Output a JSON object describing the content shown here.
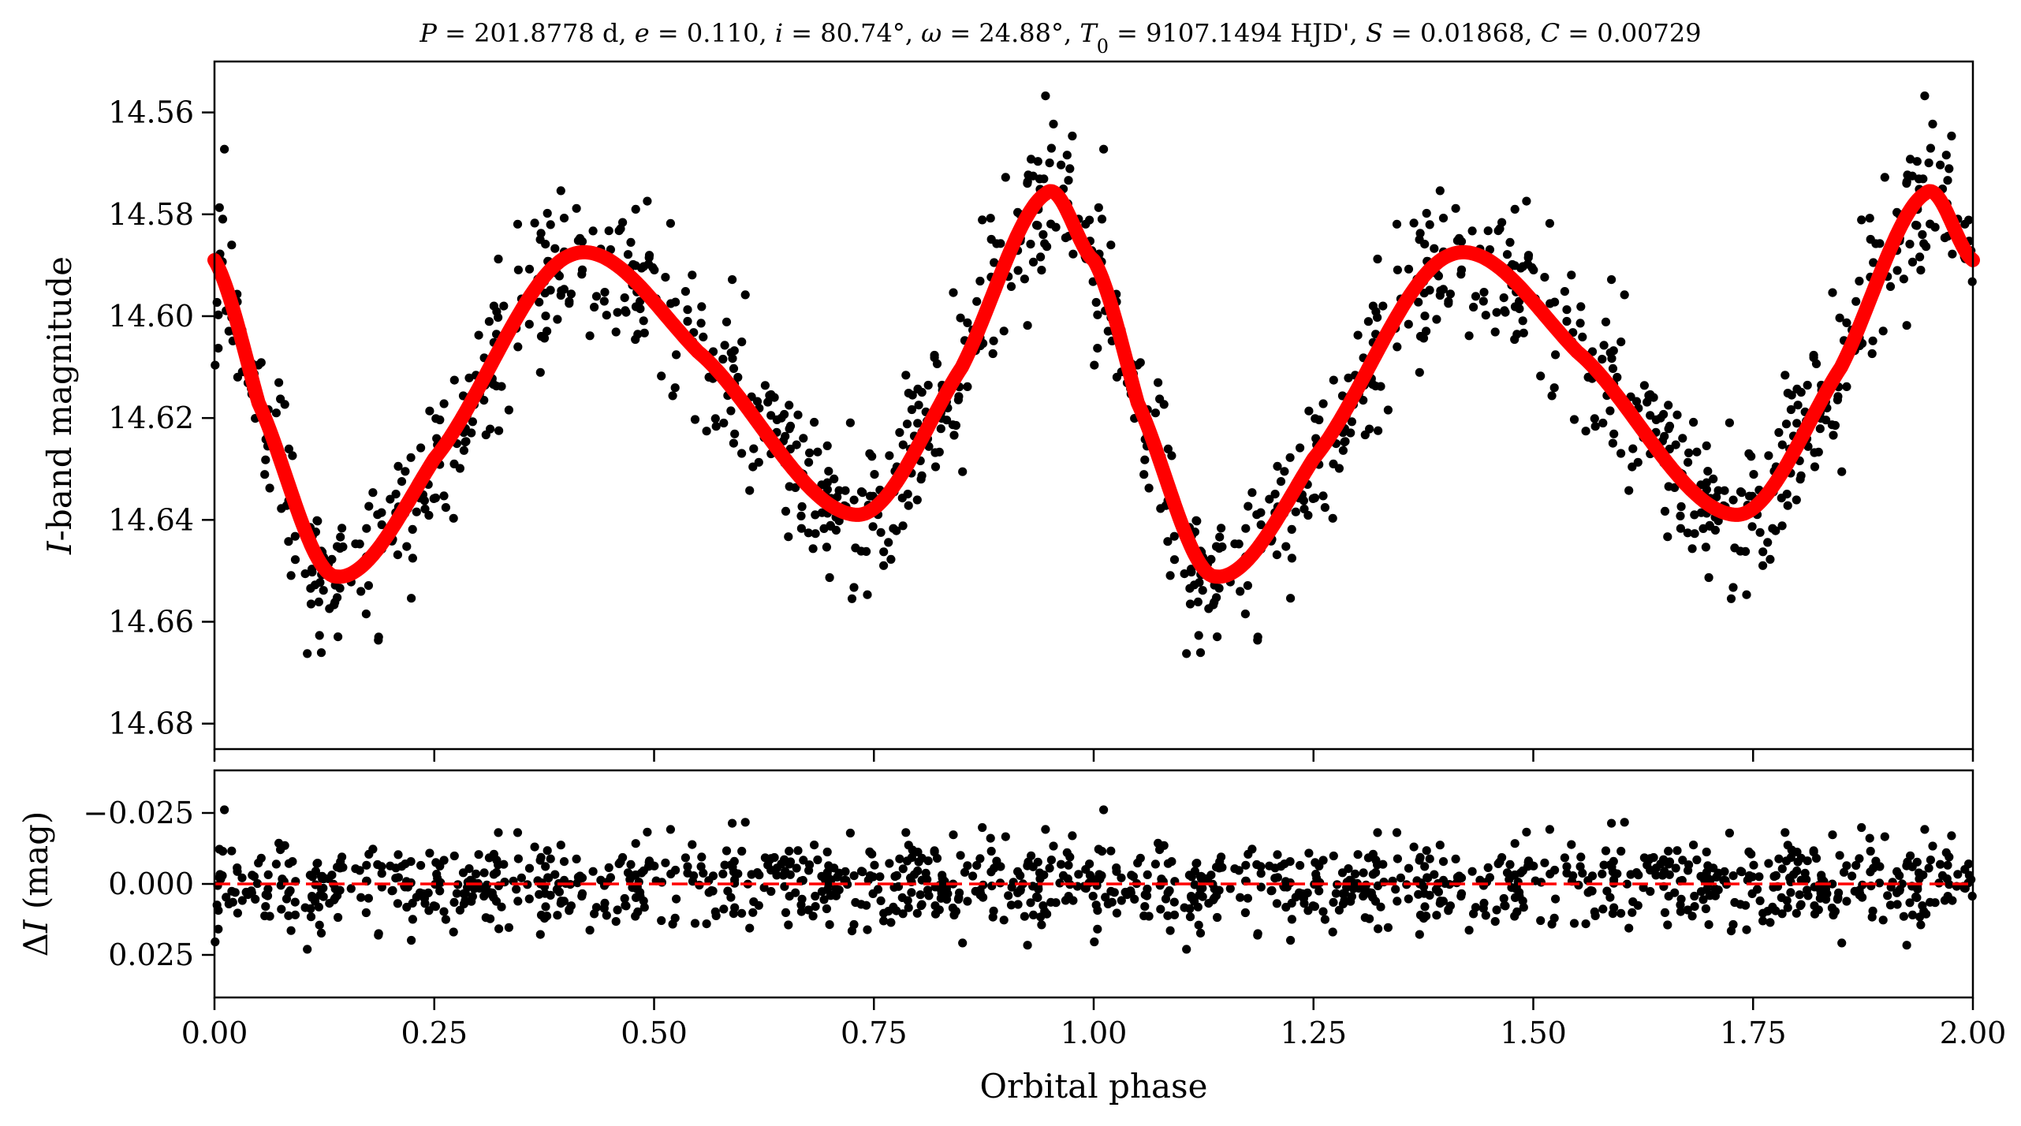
{
  "chart_data": [
    {
      "type": "scatter",
      "title_parts": [
        {
          "text": "P",
          "italic": true
        },
        {
          "text": " = 201.8778 d, ",
          "italic": false
        },
        {
          "text": "e",
          "italic": true
        },
        {
          "text": " = 0.110, ",
          "italic": false
        },
        {
          "text": "i",
          "italic": true
        },
        {
          "text": " = 80.74°, ",
          "italic": false
        },
        {
          "text": "ω",
          "italic": true
        },
        {
          "text": " = 24.88°, ",
          "italic": false
        },
        {
          "text": "T",
          "italic": true
        },
        {
          "text": "0",
          "italic": false,
          "sub": true
        },
        {
          "text": " = 9107.1494 HJD', ",
          "italic": false
        },
        {
          "text": "S",
          "italic": true
        },
        {
          "text": " = 0.01868, ",
          "italic": false
        },
        {
          "text": "C",
          "italic": true
        },
        {
          "text": " = 0.00729",
          "italic": false
        }
      ],
      "xlabel": "",
      "ylabel_italic": "I",
      "ylabel_rest": "-band magnitude",
      "xlim": [
        0,
        2
      ],
      "ylim": [
        14.685,
        14.55
      ],
      "y_inverted": true,
      "xticks": [
        0,
        0.25,
        0.5,
        0.75,
        1.0,
        1.25,
        1.5,
        1.75,
        2.0
      ],
      "yticks": [
        14.56,
        14.58,
        14.6,
        14.62,
        14.64,
        14.66,
        14.68
      ],
      "ytick_labels": [
        "14.56",
        "14.58",
        "14.60",
        "14.62",
        "14.64",
        "14.66",
        "14.68"
      ],
      "data_color": "#000000",
      "model_color": "#ff0000",
      "model": {
        "description_free": true,
        "mean": 14.611,
        "terms": [
          {
            "harmonic": 1,
            "cos": 0.0,
            "sin": 0.0
          },
          {
            "harmonic": 2,
            "cos": -0.0105,
            "sin": -0.0185
          },
          {
            "harmonic": 1,
            "cos": 0.0035,
            "sin": 0.0048
          }
        ]
      },
      "model_keypoints": [
        {
          "x": 0.0,
          "y": 14.589
        },
        {
          "x": 0.05,
          "y": 14.617
        },
        {
          "x": 0.135,
          "y": 14.651
        },
        {
          "x": 0.25,
          "y": 14.628
        },
        {
          "x": 0.405,
          "y": 14.588
        },
        {
          "x": 0.55,
          "y": 14.607
        },
        {
          "x": 0.73,
          "y": 14.639
        },
        {
          "x": 0.85,
          "y": 14.61
        },
        {
          "x": 0.945,
          "y": 14.576
        },
        {
          "x": 1.0,
          "y": 14.589
        },
        {
          "x": 1.05,
          "y": 14.617
        },
        {
          "x": 1.135,
          "y": 14.651
        },
        {
          "x": 1.25,
          "y": 14.628
        },
        {
          "x": 1.405,
          "y": 14.588
        },
        {
          "x": 1.55,
          "y": 14.607
        },
        {
          "x": 1.73,
          "y": 14.639
        },
        {
          "x": 1.85,
          "y": 14.61
        },
        {
          "x": 1.945,
          "y": 14.576
        },
        {
          "x": 2.0,
          "y": 14.589
        }
      ],
      "scatter_sigma": 0.0075,
      "n_points_per_cycle": 600
    },
    {
      "type": "scatter",
      "xlabel": "Orbital phase",
      "ylabel_prefix": "Δ",
      "ylabel_italic": "I",
      "ylabel_rest": " (mag)",
      "xlim": [
        0,
        2
      ],
      "ylim": [
        0.04,
        -0.04
      ],
      "y_inverted": true,
      "xticks": [
        0,
        0.25,
        0.5,
        0.75,
        1.0,
        1.25,
        1.5,
        1.75,
        2.0
      ],
      "xtick_labels": [
        "0.00",
        "0.25",
        "0.50",
        "0.75",
        "1.00",
        "1.25",
        "1.50",
        "1.75",
        "2.00"
      ],
      "yticks": [
        -0.025,
        0.0,
        0.025
      ],
      "ytick_labels": [
        "−0.025",
        "0.000",
        "0.025"
      ],
      "zero_line": 0.0,
      "zero_line_color": "#ff0000",
      "data_color": "#000000",
      "scatter_sigma": 0.0075
    }
  ]
}
